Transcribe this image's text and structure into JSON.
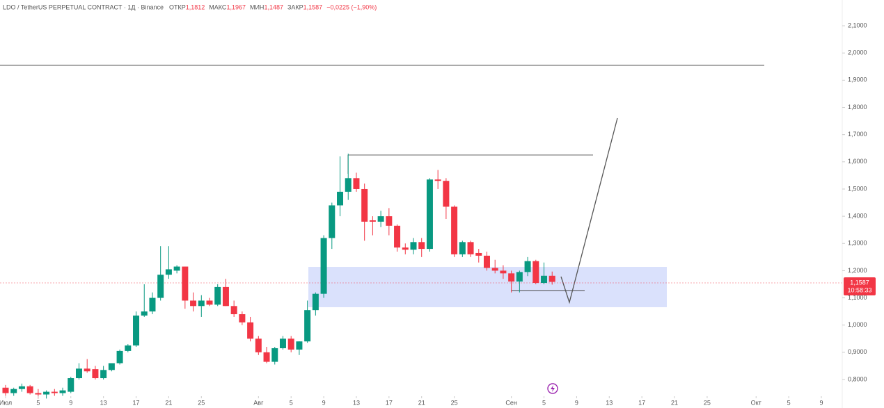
{
  "header": {
    "title": "LDO / TetherUS PERPETUAL CONTRACT · 1Д · Binance",
    "ohlc": [
      {
        "label": "ОТКР",
        "value": "1,1812"
      },
      {
        "label": "МАКС",
        "value": "1,1967"
      },
      {
        "label": "МИН",
        "value": "1,1487"
      },
      {
        "label": "ЗАКР",
        "value": "1,1587"
      }
    ],
    "change": "−0,0225 (−1,90%)"
  },
  "price_tag": {
    "price": "1,1587",
    "countdown": "10:58:33"
  },
  "chart_data": {
    "type": "candlestick",
    "up_color": "#089981",
    "down_color": "#f23645",
    "x": [
      0,
      1,
      2,
      3,
      4,
      5,
      6,
      7,
      8,
      9,
      10,
      11,
      12,
      13,
      14,
      15,
      16,
      17,
      18,
      19,
      20,
      21,
      22,
      23,
      24,
      25,
      26,
      27,
      28,
      29,
      30,
      31,
      32,
      33,
      34,
      35,
      36,
      37,
      38,
      39,
      40,
      41,
      42,
      43,
      44,
      45,
      46,
      47,
      48,
      49,
      50,
      51,
      52,
      53,
      54,
      55,
      56,
      57,
      58,
      59,
      60,
      61,
      62,
      63,
      64,
      65,
      66,
      67
    ],
    "open": [
      0.77,
      0.75,
      0.765,
      0.775,
      0.75,
      0.745,
      0.755,
      0.75,
      0.755,
      0.805,
      0.84,
      0.838,
      0.805,
      0.835,
      0.86,
      0.905,
      0.925,
      1.035,
      1.05,
      1.1,
      1.185,
      1.2,
      1.215,
      1.09,
      1.07,
      1.09,
      1.075,
      1.14,
      1.07,
      1.04,
      1.01,
      0.95,
      0.9,
      0.865,
      0.915,
      0.95,
      0.91,
      0.94,
      1.055,
      1.115,
      1.32,
      1.44,
      1.49,
      1.54,
      1.5,
      1.385,
      1.38,
      1.4,
      1.365,
      1.285,
      1.277,
      1.305,
      1.28,
      1.535,
      1.53,
      1.435,
      1.26,
      1.305,
      1.265,
      1.255,
      1.21,
      1.2,
      1.19,
      1.16,
      1.195,
      1.235,
      1.155,
      1.1812
    ],
    "high": [
      0.78,
      0.77,
      0.785,
      0.78,
      0.765,
      0.76,
      0.765,
      0.77,
      0.81,
      0.86,
      0.875,
      0.85,
      0.85,
      0.86,
      0.91,
      0.93,
      1.05,
      1.15,
      1.12,
      1.29,
      1.29,
      1.22,
      1.215,
      1.12,
      1.11,
      1.1,
      1.15,
      1.17,
      1.09,
      1.05,
      1.03,
      0.96,
      0.92,
      0.92,
      0.96,
      0.96,
      0.94,
      1.09,
      1.12,
      1.33,
      1.45,
      1.62,
      1.63,
      1.56,
      1.52,
      1.4,
      1.42,
      1.43,
      1.37,
      1.3,
      1.32,
      1.32,
      1.54,
      1.57,
      1.54,
      1.44,
      1.31,
      1.31,
      1.28,
      1.27,
      1.24,
      1.22,
      1.2,
      1.2,
      1.25,
      1.24,
      1.23,
      1.1967
    ],
    "low": [
      0.74,
      0.74,
      0.755,
      0.745,
      0.73,
      0.73,
      0.74,
      0.74,
      0.75,
      0.8,
      0.825,
      0.8,
      0.8,
      0.83,
      0.855,
      0.9,
      0.92,
      1.03,
      1.04,
      1.09,
      1.17,
      1.19,
      1.06,
      1.05,
      1.03,
      1.07,
      1.07,
      1.07,
      1.03,
      1.0,
      0.94,
      0.89,
      0.86,
      0.855,
      0.91,
      0.9,
      0.89,
      0.935,
      1.035,
      1.1,
      1.28,
      1.4,
      1.46,
      1.49,
      1.31,
      1.33,
      1.36,
      1.33,
      1.27,
      1.26,
      1.26,
      1.25,
      1.27,
      1.5,
      1.39,
      1.25,
      1.25,
      1.25,
      1.23,
      1.2,
      1.19,
      1.17,
      1.12,
      1.12,
      1.18,
      1.15,
      1.15,
      1.1487
    ],
    "close": [
      0.75,
      0.765,
      0.775,
      0.75,
      0.745,
      0.755,
      0.75,
      0.76,
      0.805,
      0.84,
      0.83,
      0.805,
      0.835,
      0.86,
      0.905,
      0.925,
      1.035,
      1.05,
      1.1,
      1.185,
      1.205,
      1.215,
      1.09,
      1.07,
      1.09,
      1.075,
      1.14,
      1.07,
      1.04,
      1.01,
      0.95,
      0.9,
      0.865,
      0.915,
      0.95,
      0.91,
      0.94,
      1.055,
      1.115,
      1.32,
      1.44,
      1.49,
      1.54,
      1.5,
      1.38,
      1.38,
      1.4,
      1.365,
      1.285,
      1.277,
      1.305,
      1.28,
      1.535,
      1.53,
      1.435,
      1.26,
      1.305,
      1.26,
      1.255,
      1.21,
      1.2,
      1.19,
      1.16,
      1.195,
      1.235,
      1.155,
      1.1812,
      1.1587
    ],
    "xlim": [
      -0.683,
      102.56
    ],
    "xticks": [
      {
        "value": 0,
        "label": "Июл"
      },
      {
        "value": 4,
        "label": "5"
      },
      {
        "value": 8,
        "label": "9"
      },
      {
        "value": 12,
        "label": "13"
      },
      {
        "value": 16,
        "label": "17"
      },
      {
        "value": 20,
        "label": "21"
      },
      {
        "value": 24,
        "label": "25"
      },
      {
        "value": 31,
        "label": "Авг"
      },
      {
        "value": 35,
        "label": "5"
      },
      {
        "value": 39,
        "label": "9"
      },
      {
        "value": 43,
        "label": "13"
      },
      {
        "value": 47,
        "label": "17"
      },
      {
        "value": 51,
        "label": "21"
      },
      {
        "value": 55,
        "label": "25"
      },
      {
        "value": 62,
        "label": "Сен"
      },
      {
        "value": 66,
        "label": "5"
      },
      {
        "value": 70,
        "label": "9"
      },
      {
        "value": 74,
        "label": "13"
      },
      {
        "value": 78,
        "label": "17"
      },
      {
        "value": 82,
        "label": "21"
      },
      {
        "value": 86,
        "label": "25"
      },
      {
        "value": 92,
        "label": "Окт"
      },
      {
        "value": 96,
        "label": "5"
      },
      {
        "value": 100,
        "label": "9"
      }
    ],
    "ylim": [
      0.7387,
      2.1947
    ],
    "yticks": [
      {
        "value": 0.8,
        "label": "0,8000"
      },
      {
        "value": 0.9,
        "label": "0,9000"
      },
      {
        "value": 1.0,
        "label": "1,0000"
      },
      {
        "value": 1.1,
        "label": "1,1000"
      },
      {
        "value": 1.2,
        "label": "1,2000"
      },
      {
        "value": 1.3,
        "label": "1,3000"
      },
      {
        "value": 1.4,
        "label": "1,4000"
      },
      {
        "value": 1.5,
        "label": "1,5000"
      },
      {
        "value": 1.6,
        "label": "1,6000"
      },
      {
        "value": 1.7,
        "label": "1,7000"
      },
      {
        "value": 1.8,
        "label": "1,8000"
      },
      {
        "value": 1.9,
        "label": "1,9000"
      },
      {
        "value": 2.0,
        "label": "2,0000"
      },
      {
        "value": 2.1,
        "label": "2,1000"
      }
    ]
  }
}
